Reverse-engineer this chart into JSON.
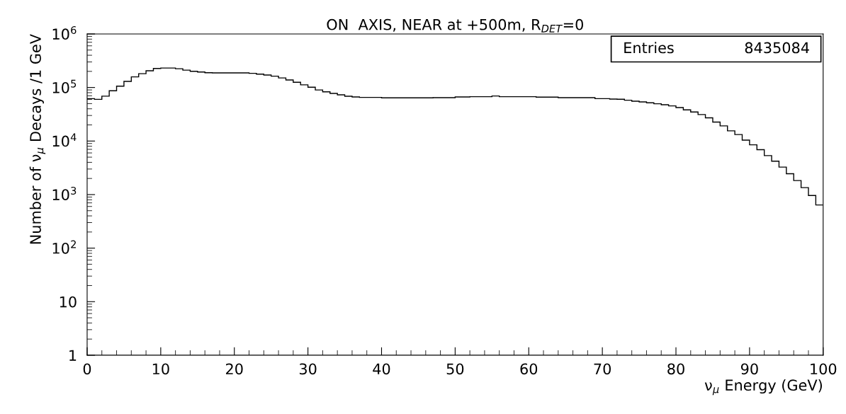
{
  "chart_data": {
    "type": "histogram",
    "title": "ON  AXIS, NEAR at +500m, R$_{DET}$=0",
    "xlabel": "ν$_{μ}$ Energy (GeV)",
    "ylabel": "Number of ν$_{μ}$ Decays /1 GeV",
    "annotations": [
      "Entries",
      "8435084"
    ],
    "bins": [
      0,
      1,
      2,
      3,
      4,
      5,
      6,
      7,
      8,
      9,
      10,
      11,
      12,
      13,
      14,
      15,
      16,
      17,
      18,
      19,
      20,
      21,
      22,
      23,
      24,
      25,
      26,
      27,
      28,
      29,
      30,
      31,
      32,
      33,
      34,
      35,
      36,
      37,
      38,
      39,
      40,
      41,
      42,
      43,
      44,
      45,
      46,
      47,
      48,
      49,
      50,
      51,
      52,
      53,
      54,
      55,
      56,
      57,
      58,
      59,
      60,
      61,
      62,
      63,
      64,
      65,
      66,
      67,
      68,
      69,
      70,
      71,
      72,
      73,
      74,
      75,
      76,
      77,
      78,
      79,
      80,
      81,
      82,
      83,
      84,
      85,
      86,
      87,
      88,
      89,
      90,
      91,
      92,
      93,
      94,
      95,
      96,
      97,
      98,
      99,
      100
    ],
    "values": [
      62000,
      60000,
      69000,
      87000,
      106000,
      130000,
      158000,
      181000,
      205000,
      227000,
      231000,
      231000,
      224000,
      211000,
      201000,
      195000,
      189000,
      187000,
      187000,
      187000,
      187000,
      187000,
      184000,
      178000,
      171000,
      163000,
      151000,
      138000,
      125000,
      112000,
      101000,
      90000,
      83000,
      77500,
      73000,
      68700,
      66600,
      65400,
      65400,
      65400,
      64000,
      64000,
      64000,
      64000,
      64000,
      64000,
      64000,
      64700,
      64700,
      64700,
      66600,
      66600,
      67300,
      67300,
      67300,
      69500,
      67300,
      67300,
      67300,
      67300,
      67300,
      66000,
      66000,
      66000,
      64700,
      64700,
      64700,
      64600,
      64600,
      62000,
      62000,
      60800,
      60300,
      57800,
      55500,
      53800,
      51700,
      49700,
      47700,
      45400,
      42200,
      38200,
      34900,
      31200,
      27100,
      22600,
      19200,
      15500,
      13200,
      10400,
      8500,
      6900,
      5350,
      4200,
      3260,
      2450,
      1830,
      1350,
      960,
      640
    ],
    "color": "#000000",
    "log": "y",
    "xlim": [
      0,
      100
    ],
    "xticks": [
      0,
      10,
      20,
      30,
      40,
      50,
      60,
      70,
      80,
      90,
      100
    ],
    "ylim": [
      1,
      1000000
    ],
    "yticks": [
      1,
      10,
      {
        "value": 100,
        "label": "10$^{2}$"
      },
      {
        "value": 1000,
        "label": "10$^{3}$"
      },
      {
        "value": 10000,
        "label": "10$^{4}$"
      },
      {
        "value": 100000,
        "label": "10$^{5}$"
      },
      {
        "value": 1000000,
        "label": "10$^{6}$"
      }
    ],
    "grid": false,
    "legend": false
  }
}
